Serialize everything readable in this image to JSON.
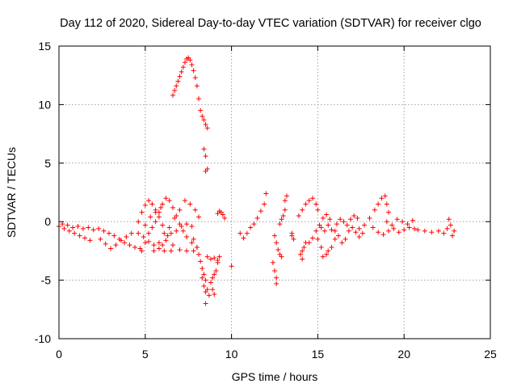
{
  "chart_data": {
    "type": "scatter",
    "title": "Day 112 of 2020, Sidereal Day-to-day VTEC variation (SDTVAR) for receiver clgo",
    "xlabel": "GPS time / hours",
    "ylabel": "SDTVAR / TECUs",
    "xlim": [
      0,
      25
    ],
    "ylim": [
      -10,
      15
    ],
    "xticks": [
      0,
      5,
      10,
      15,
      20,
      25
    ],
    "yticks": [
      15,
      10,
      5,
      0,
      -5,
      -10
    ],
    "xtick_labels": [
      "0",
      "5",
      "10",
      "15",
      "20",
      "25"
    ],
    "ytick_labels": [
      "15",
      "10",
      "5",
      "0",
      "-5",
      "-10"
    ],
    "grid": true,
    "marker": "+",
    "color": "#ff0000",
    "series": [
      {
        "name": "SDTVAR",
        "points": [
          [
            0.0,
            -0.4
          ],
          [
            0.3,
            -0.6
          ],
          [
            0.6,
            -0.8
          ],
          [
            0.9,
            -1.0
          ],
          [
            1.2,
            -1.2
          ],
          [
            1.5,
            -1.4
          ],
          [
            1.8,
            -1.6
          ],
          [
            0.2,
            -0.2
          ],
          [
            0.5,
            -0.3
          ],
          [
            0.8,
            -0.5
          ],
          [
            1.1,
            -0.4
          ],
          [
            1.4,
            -0.6
          ],
          [
            1.7,
            -0.5
          ],
          [
            2.0,
            -0.7
          ],
          [
            2.3,
            -0.6
          ],
          [
            2.6,
            -0.8
          ],
          [
            2.9,
            -1.0
          ],
          [
            3.2,
            -1.2
          ],
          [
            3.5,
            -1.5
          ],
          [
            3.8,
            -1.8
          ],
          [
            4.1,
            -2.0
          ],
          [
            4.4,
            -2.2
          ],
          [
            4.7,
            -2.3
          ],
          [
            2.4,
            -1.5
          ],
          [
            2.7,
            -1.9
          ],
          [
            3.0,
            -2.3
          ],
          [
            3.3,
            -2.0
          ],
          [
            3.6,
            -1.6
          ],
          [
            3.9,
            -1.3
          ],
          [
            4.2,
            -1.0
          ],
          [
            4.6,
            0.0
          ],
          [
            4.8,
            0.8
          ],
          [
            5.0,
            1.4
          ],
          [
            5.2,
            1.8
          ],
          [
            5.4,
            1.5
          ],
          [
            5.6,
            1.0
          ],
          [
            5.8,
            0.4
          ],
          [
            6.0,
            -0.3
          ],
          [
            6.3,
            -1.2
          ],
          [
            6.6,
            -2.0
          ],
          [
            7.0,
            -2.4
          ],
          [
            7.4,
            -2.5
          ],
          [
            7.8,
            -2.5
          ],
          [
            4.6,
            -1.0
          ],
          [
            4.9,
            -1.3
          ],
          [
            5.2,
            -1.7
          ],
          [
            5.5,
            -2.0
          ],
          [
            5.8,
            -2.3
          ],
          [
            6.1,
            -2.5
          ],
          [
            6.5,
            -2.5
          ],
          [
            4.8,
            -2.5
          ],
          [
            5.0,
            -1.8
          ],
          [
            5.2,
            -1.0
          ],
          [
            5.4,
            -0.5
          ],
          [
            5.6,
            0.0
          ],
          [
            5.8,
            0.8
          ],
          [
            6.0,
            1.5
          ],
          [
            6.2,
            2.0
          ],
          [
            6.4,
            1.8
          ],
          [
            6.6,
            1.2
          ],
          [
            6.8,
            0.5
          ],
          [
            7.0,
            -0.2
          ],
          [
            7.2,
            -0.8
          ],
          [
            7.4,
            -1.3
          ],
          [
            7.7,
            -1.8
          ],
          [
            8.0,
            -2.2
          ],
          [
            5.5,
            -2.5
          ],
          [
            5.8,
            -1.8
          ],
          [
            6.1,
            -1.0
          ],
          [
            6.4,
            -0.5
          ],
          [
            6.7,
            0.3
          ],
          [
            7.0,
            1.0
          ],
          [
            7.3,
            1.8
          ],
          [
            7.6,
            1.5
          ],
          [
            7.9,
            1.0
          ],
          [
            8.1,
            0.4
          ],
          [
            6.0,
            -2.0
          ],
          [
            6.2,
            -1.6
          ],
          [
            6.5,
            -1.0
          ],
          [
            6.8,
            -0.8
          ],
          [
            7.1,
            -0.4
          ],
          [
            7.4,
            -0.2
          ],
          [
            7.7,
            -0.4
          ],
          [
            5.0,
            -0.3
          ],
          [
            5.3,
            0.4
          ],
          [
            5.6,
            0.8
          ],
          [
            5.9,
            1.2
          ],
          [
            6.6,
            10.8
          ],
          [
            6.7,
            11.2
          ],
          [
            6.8,
            11.6
          ],
          [
            6.9,
            12.0
          ],
          [
            7.0,
            12.4
          ],
          [
            7.1,
            12.8
          ],
          [
            7.2,
            13.2
          ],
          [
            7.3,
            13.6
          ],
          [
            7.4,
            13.9
          ],
          [
            7.5,
            14.0
          ],
          [
            7.6,
            13.8
          ],
          [
            7.7,
            13.4
          ],
          [
            7.8,
            12.9
          ],
          [
            7.9,
            12.3
          ],
          [
            8.0,
            11.6
          ],
          [
            8.1,
            10.5
          ],
          [
            8.2,
            9.5
          ],
          [
            8.3,
            9.0
          ],
          [
            8.4,
            8.7
          ],
          [
            8.5,
            8.3
          ],
          [
            8.6,
            8.0
          ],
          [
            8.4,
            6.2
          ],
          [
            8.5,
            5.6
          ],
          [
            8.5,
            4.3
          ],
          [
            8.6,
            4.5
          ],
          [
            7.8,
            -1.5
          ],
          [
            8.0,
            -2.2
          ],
          [
            8.1,
            -2.8
          ],
          [
            8.2,
            -3.4
          ],
          [
            8.3,
            -4.0
          ],
          [
            8.4,
            -4.5
          ],
          [
            8.5,
            -5.0
          ],
          [
            8.6,
            -5.8
          ],
          [
            8.7,
            -6.3
          ],
          [
            8.5,
            -7.0
          ],
          [
            8.3,
            -4.8
          ],
          [
            8.4,
            -5.5
          ],
          [
            8.5,
            -6.0
          ],
          [
            8.8,
            -5.2
          ],
          [
            8.9,
            -4.8
          ],
          [
            9.0,
            -4.5
          ],
          [
            9.1,
            -4.2
          ],
          [
            9.2,
            -3.5
          ],
          [
            9.3,
            -3.0
          ],
          [
            8.6,
            -3.0
          ],
          [
            8.8,
            -3.2
          ],
          [
            9.0,
            -3.1
          ],
          [
            9.2,
            -3.3
          ],
          [
            8.9,
            -5.8
          ],
          [
            9.0,
            -6.2
          ],
          [
            9.2,
            0.7
          ],
          [
            9.3,
            0.9
          ],
          [
            9.4,
            0.8
          ],
          [
            9.5,
            0.6
          ],
          [
            9.6,
            0.3
          ],
          [
            10.0,
            -3.8
          ],
          [
            10.5,
            -1.0
          ],
          [
            10.7,
            -1.4
          ],
          [
            10.9,
            -1.0
          ],
          [
            11.1,
            -0.5
          ],
          [
            11.3,
            -0.2
          ],
          [
            11.5,
            0.3
          ],
          [
            11.7,
            0.9
          ],
          [
            11.9,
            1.5
          ],
          [
            12.0,
            2.4
          ],
          [
            12.5,
            -1.2
          ],
          [
            12.6,
            -1.8
          ],
          [
            12.7,
            -2.4
          ],
          [
            12.8,
            -2.8
          ],
          [
            12.9,
            -3.0
          ],
          [
            12.4,
            -3.5
          ],
          [
            12.5,
            -4.2
          ],
          [
            12.6,
            -4.8
          ],
          [
            12.6,
            -5.3
          ],
          [
            13.1,
            1.8
          ],
          [
            13.2,
            2.2
          ],
          [
            13.0,
            0.5
          ],
          [
            13.1,
            1.0
          ],
          [
            12.8,
            -0.2
          ],
          [
            12.9,
            0.2
          ],
          [
            13.5,
            -1.2
          ],
          [
            13.6,
            -1.5
          ],
          [
            13.5,
            -1.0
          ],
          [
            14.0,
            -2.8
          ],
          [
            14.1,
            -2.5
          ],
          [
            14.2,
            -2.2
          ],
          [
            14.3,
            -1.8
          ],
          [
            14.1,
            -3.2
          ],
          [
            13.9,
            0.5
          ],
          [
            14.1,
            1.0
          ],
          [
            14.3,
            1.5
          ],
          [
            14.5,
            1.8
          ],
          [
            14.7,
            2.0
          ],
          [
            14.9,
            1.5
          ],
          [
            15.0,
            1.0
          ],
          [
            14.5,
            -1.8
          ],
          [
            14.7,
            -1.4
          ],
          [
            14.9,
            -0.8
          ],
          [
            15.1,
            -0.3
          ],
          [
            15.3,
            0.3
          ],
          [
            15.5,
            0.6
          ],
          [
            15.7,
            0.2
          ],
          [
            15.0,
            -1.5
          ],
          [
            15.2,
            -2.2
          ],
          [
            15.3,
            -3.0
          ],
          [
            15.5,
            -2.8
          ],
          [
            15.6,
            -2.5
          ],
          [
            15.8,
            -2.2
          ],
          [
            16.0,
            -1.5
          ],
          [
            15.2,
            -0.5
          ],
          [
            15.4,
            -0.8
          ],
          [
            15.6,
            -0.3
          ],
          [
            15.8,
            -0.7
          ],
          [
            16.0,
            -0.8
          ],
          [
            16.2,
            -1.2
          ],
          [
            16.4,
            -1.8
          ],
          [
            16.6,
            -1.5
          ],
          [
            16.8,
            -0.8
          ],
          [
            17.0,
            -0.5
          ],
          [
            17.2,
            -0.9
          ],
          [
            17.4,
            -1.3
          ],
          [
            17.6,
            -1.0
          ],
          [
            16.1,
            -0.2
          ],
          [
            16.3,
            0.2
          ],
          [
            16.5,
            0.0
          ],
          [
            16.7,
            -0.3
          ],
          [
            16.9,
            0.2
          ],
          [
            17.1,
            0.5
          ],
          [
            17.3,
            0.3
          ],
          [
            17.4,
            -0.6
          ],
          [
            17.7,
            -0.3
          ],
          [
            18.0,
            0.3
          ],
          [
            18.3,
            1.0
          ],
          [
            18.5,
            1.5
          ],
          [
            18.7,
            2.0
          ],
          [
            18.9,
            2.2
          ],
          [
            19.0,
            1.5
          ],
          [
            19.1,
            0.8
          ],
          [
            18.2,
            -0.5
          ],
          [
            18.5,
            -0.9
          ],
          [
            18.8,
            -1.1
          ],
          [
            19.1,
            -0.8
          ],
          [
            19.4,
            -0.6
          ],
          [
            19.7,
            -0.9
          ],
          [
            20.0,
            -0.7
          ],
          [
            20.3,
            -0.5
          ],
          [
            20.6,
            -0.6
          ],
          [
            19.0,
            0.0
          ],
          [
            19.3,
            -0.3
          ],
          [
            19.6,
            0.2
          ],
          [
            19.9,
            0.0
          ],
          [
            20.2,
            -0.2
          ],
          [
            20.5,
            0.1
          ],
          [
            20.8,
            -0.7
          ],
          [
            21.2,
            -0.8
          ],
          [
            21.6,
            -0.9
          ],
          [
            22.0,
            -0.8
          ],
          [
            22.3,
            -1.0
          ],
          [
            22.5,
            -0.6
          ],
          [
            22.7,
            -0.3
          ],
          [
            22.6,
            0.2
          ],
          [
            22.9,
            -0.8
          ],
          [
            22.8,
            -1.2
          ]
        ]
      }
    ]
  }
}
